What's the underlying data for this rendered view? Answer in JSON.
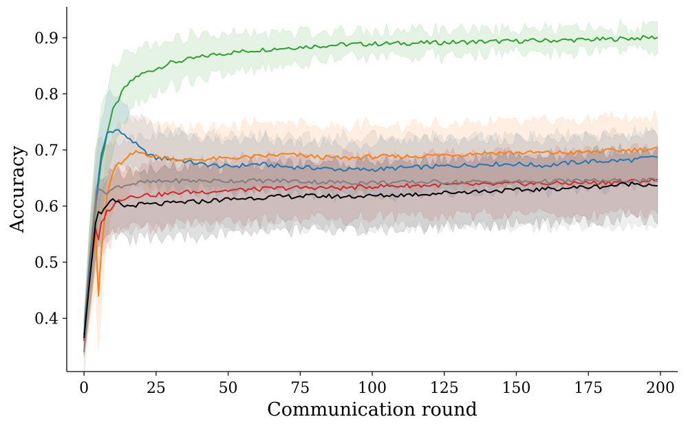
{
  "chart_data": {
    "type": "line",
    "xlabel": "Communication round",
    "ylabel": "Accuracy",
    "xlim": [
      -6,
      206
    ],
    "ylim": [
      0.305,
      0.955
    ],
    "xticks": [
      0,
      25,
      50,
      75,
      100,
      125,
      150,
      175,
      200
    ],
    "yticks": [
      0.4,
      0.5,
      0.6,
      0.7,
      0.8,
      0.9
    ],
    "xtick_labels": [
      "0",
      "25",
      "50",
      "75",
      "100",
      "125",
      "150",
      "175",
      "200"
    ],
    "ytick_labels": [
      "0.4",
      "0.5",
      "0.6",
      "0.7",
      "0.8",
      "0.9"
    ],
    "grid": false,
    "legend": "none",
    "spines": "left-bottom",
    "series": [
      {
        "color": "#2ca02c",
        "x": [
          0,
          2,
          4,
          6,
          8,
          10,
          12,
          14,
          16,
          18,
          20,
          25,
          30,
          35,
          40,
          45,
          50,
          60,
          70,
          80,
          90,
          100,
          110,
          120,
          130,
          140,
          150,
          160,
          170,
          180,
          190,
          199
        ],
        "y": [
          0.37,
          0.5,
          0.6,
          0.68,
          0.73,
          0.77,
          0.79,
          0.81,
          0.82,
          0.83,
          0.835,
          0.845,
          0.855,
          0.86,
          0.865,
          0.87,
          0.873,
          0.878,
          0.882,
          0.885,
          0.888,
          0.889,
          0.89,
          0.891,
          0.892,
          0.893,
          0.894,
          0.895,
          0.896,
          0.897,
          0.899,
          0.901
        ],
        "band": [
          0.035,
          0.08,
          0.1,
          0.09,
          0.08,
          0.07,
          0.06,
          0.055,
          0.05,
          0.048,
          0.047,
          0.045,
          0.043,
          0.04,
          0.038,
          0.035,
          0.032,
          0.03,
          0.028,
          0.026,
          0.025,
          0.024,
          0.023,
          0.022,
          0.021,
          0.02,
          0.02,
          0.02,
          0.02,
          0.02,
          0.02,
          0.02
        ]
      },
      {
        "color": "#1f77b4",
        "x": [
          0,
          2,
          4,
          5,
          6,
          8,
          10,
          12,
          14,
          16,
          18,
          20,
          25,
          30,
          35,
          40,
          50,
          60,
          70,
          80,
          90,
          100,
          110,
          120,
          130,
          140,
          150,
          160,
          170,
          180,
          190,
          199
        ],
        "y": [
          0.37,
          0.5,
          0.6,
          0.65,
          0.69,
          0.73,
          0.735,
          0.735,
          0.725,
          0.72,
          0.71,
          0.7,
          0.685,
          0.685,
          0.68,
          0.675,
          0.67,
          0.675,
          0.67,
          0.668,
          0.665,
          0.665,
          0.668,
          0.67,
          0.672,
          0.675,
          0.675,
          0.672,
          0.678,
          0.68,
          0.682,
          0.688
        ],
        "band": [
          0.03,
          0.06,
          0.07,
          0.07,
          0.07,
          0.07,
          0.06,
          0.06,
          0.055,
          0.05,
          0.05,
          0.05,
          0.05,
          0.05,
          0.048,
          0.047,
          0.046,
          0.046,
          0.046,
          0.046,
          0.046,
          0.046,
          0.046,
          0.046,
          0.046,
          0.046,
          0.046,
          0.046,
          0.046,
          0.046,
          0.046,
          0.046
        ]
      },
      {
        "color": "#ff7f0e",
        "x": [
          0,
          2,
          4,
          5,
          6,
          8,
          10,
          12,
          14,
          16,
          18,
          20,
          25,
          30,
          35,
          40,
          50,
          60,
          70,
          80,
          90,
          100,
          110,
          120,
          130,
          140,
          150,
          160,
          170,
          180,
          190,
          199
        ],
        "y": [
          0.36,
          0.48,
          0.55,
          0.44,
          0.52,
          0.62,
          0.66,
          0.675,
          0.68,
          0.69,
          0.695,
          0.695,
          0.688,
          0.685,
          0.682,
          0.683,
          0.685,
          0.688,
          0.692,
          0.688,
          0.685,
          0.688,
          0.688,
          0.69,
          0.692,
          0.695,
          0.695,
          0.695,
          0.695,
          0.698,
          0.7,
          0.702
        ],
        "band": [
          0.03,
          0.08,
          0.1,
          0.1,
          0.09,
          0.08,
          0.07,
          0.065,
          0.06,
          0.06,
          0.058,
          0.057,
          0.056,
          0.056,
          0.056,
          0.056,
          0.056,
          0.056,
          0.056,
          0.056,
          0.056,
          0.056,
          0.056,
          0.056,
          0.056,
          0.056,
          0.056,
          0.056,
          0.056,
          0.056,
          0.056,
          0.056
        ]
      },
      {
        "color": "#d62728",
        "x": [
          0,
          2,
          4,
          5,
          6,
          8,
          10,
          12,
          14,
          16,
          18,
          20,
          25,
          30,
          35,
          40,
          50,
          60,
          70,
          80,
          90,
          100,
          110,
          120,
          130,
          140,
          150,
          160,
          170,
          180,
          190,
          199
        ],
        "y": [
          0.36,
          0.47,
          0.56,
          0.54,
          0.57,
          0.59,
          0.6,
          0.61,
          0.615,
          0.618,
          0.618,
          0.62,
          0.62,
          0.622,
          0.625,
          0.625,
          0.628,
          0.63,
          0.632,
          0.633,
          0.632,
          0.635,
          0.636,
          0.637,
          0.638,
          0.638,
          0.64,
          0.64,
          0.641,
          0.642,
          0.644,
          0.646
        ],
        "band": [
          0.03,
          0.06,
          0.07,
          0.07,
          0.065,
          0.06,
          0.058,
          0.057,
          0.056,
          0.055,
          0.055,
          0.055,
          0.055,
          0.055,
          0.055,
          0.055,
          0.055,
          0.055,
          0.055,
          0.055,
          0.055,
          0.055,
          0.055,
          0.055,
          0.055,
          0.055,
          0.055,
          0.055,
          0.055,
          0.055,
          0.055,
          0.055
        ]
      },
      {
        "color": "#7f7f7f",
        "x": [
          0,
          2,
          4,
          5,
          6,
          8,
          10,
          12,
          14,
          16,
          18,
          20,
          25,
          30,
          35,
          40,
          50,
          60,
          70,
          80,
          90,
          100,
          110,
          120,
          130,
          140,
          150,
          160,
          170,
          180,
          190,
          199
        ],
        "y": [
          0.34,
          0.48,
          0.6,
          0.63,
          0.625,
          0.625,
          0.63,
          0.635,
          0.637,
          0.64,
          0.64,
          0.642,
          0.643,
          0.645,
          0.645,
          0.645,
          0.645,
          0.645,
          0.645,
          0.643,
          0.642,
          0.642,
          0.642,
          0.643,
          0.643,
          0.643,
          0.643,
          0.644,
          0.645,
          0.645,
          0.645,
          0.646
        ],
        "band": [
          0.04,
          0.08,
          0.1,
          0.09,
          0.085,
          0.085,
          0.08,
          0.08,
          0.08,
          0.08,
          0.08,
          0.08,
          0.08,
          0.08,
          0.08,
          0.08,
          0.08,
          0.08,
          0.08,
          0.08,
          0.08,
          0.08,
          0.08,
          0.08,
          0.08,
          0.08,
          0.08,
          0.08,
          0.08,
          0.08,
          0.08,
          0.08
        ]
      },
      {
        "color": "#000000",
        "x": [
          0,
          2,
          4,
          5,
          6,
          8,
          10,
          12,
          14,
          16,
          18,
          20,
          25,
          30,
          35,
          40,
          50,
          60,
          70,
          80,
          90,
          100,
          110,
          120,
          130,
          140,
          150,
          160,
          170,
          180,
          190,
          199
        ],
        "y": [
          0.365,
          0.47,
          0.57,
          0.59,
          0.585,
          0.6,
          0.61,
          0.605,
          0.6,
          0.6,
          0.602,
          0.603,
          0.603,
          0.605,
          0.607,
          0.608,
          0.612,
          0.615,
          0.617,
          0.618,
          0.617,
          0.618,
          0.62,
          0.622,
          0.625,
          0.627,
          0.628,
          0.63,
          0.633,
          0.635,
          0.64,
          0.638
        ],
        "band": [
          0.03,
          0.05,
          0.06,
          0.06,
          0.06,
          0.06,
          0.06,
          0.06,
          0.06,
          0.06,
          0.06,
          0.06,
          0.06,
          0.06,
          0.06,
          0.06,
          0.06,
          0.06,
          0.06,
          0.06,
          0.06,
          0.06,
          0.06,
          0.06,
          0.06,
          0.06,
          0.06,
          0.06,
          0.06,
          0.06,
          0.06,
          0.06
        ]
      }
    ]
  }
}
